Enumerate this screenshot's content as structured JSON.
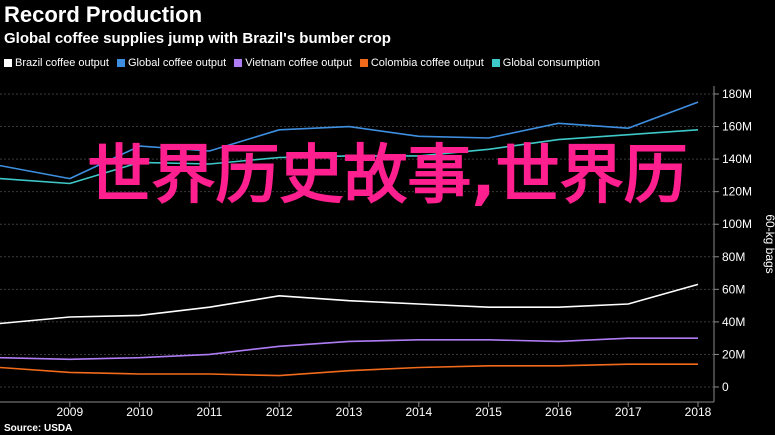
{
  "header": {
    "title": "Record Production",
    "subtitle": "Global coffee supplies jump with Brazil's bumber crop"
  },
  "source": "Source: USDA",
  "overlay_text": "世界历史故事,世界历",
  "colors": {
    "background": "#000000",
    "grid": "#3a3a3a",
    "axis": "#8a8a8a",
    "overlay": "#ff1f8e"
  },
  "chart_data": {
    "type": "line",
    "x": [
      2008,
      2009,
      2010,
      2011,
      2012,
      2013,
      2014,
      2015,
      2016,
      2017,
      2018
    ],
    "xticks": [
      "2009",
      "2010",
      "2011",
      "2012",
      "2013",
      "2014",
      "2015",
      "2016",
      "2017",
      "2018"
    ],
    "ylim": [
      0,
      180
    ],
    "yticks": [
      0,
      20,
      40,
      60,
      80,
      100,
      120,
      140,
      160,
      180
    ],
    "ytick_labels": [
      "0",
      "20M",
      "40M",
      "60M",
      "80M",
      "100M",
      "120M",
      "140M",
      "160M",
      "180M"
    ],
    "ylabel": "60-kg bags",
    "y_axis_position": "right",
    "grid": true,
    "legend_position": "top-left",
    "series": [
      {
        "name": "Brazil coffee output",
        "color": "#ffffff",
        "values": [
          39,
          43,
          44,
          49,
          56,
          53,
          51,
          49,
          49,
          51,
          63
        ]
      },
      {
        "name": "Global coffee output",
        "color": "#3f8fe0",
        "values": [
          136,
          128,
          148,
          145,
          158,
          160,
          154,
          153,
          162,
          159,
          175
        ]
      },
      {
        "name": "Vietnam coffee output",
        "color": "#b07cf5",
        "values": [
          18,
          17,
          18,
          20,
          25,
          28,
          29,
          29,
          28,
          30,
          30
        ]
      },
      {
        "name": "Colombia coffee output",
        "color": "#f26a1b",
        "values": [
          12,
          9,
          8,
          8,
          7,
          10,
          12,
          13,
          13,
          14,
          14
        ]
      },
      {
        "name": "Global consumption",
        "color": "#3fc8c8",
        "values": [
          128,
          125,
          138,
          137,
          141,
          142,
          142,
          146,
          152,
          155,
          158
        ]
      }
    ]
  }
}
